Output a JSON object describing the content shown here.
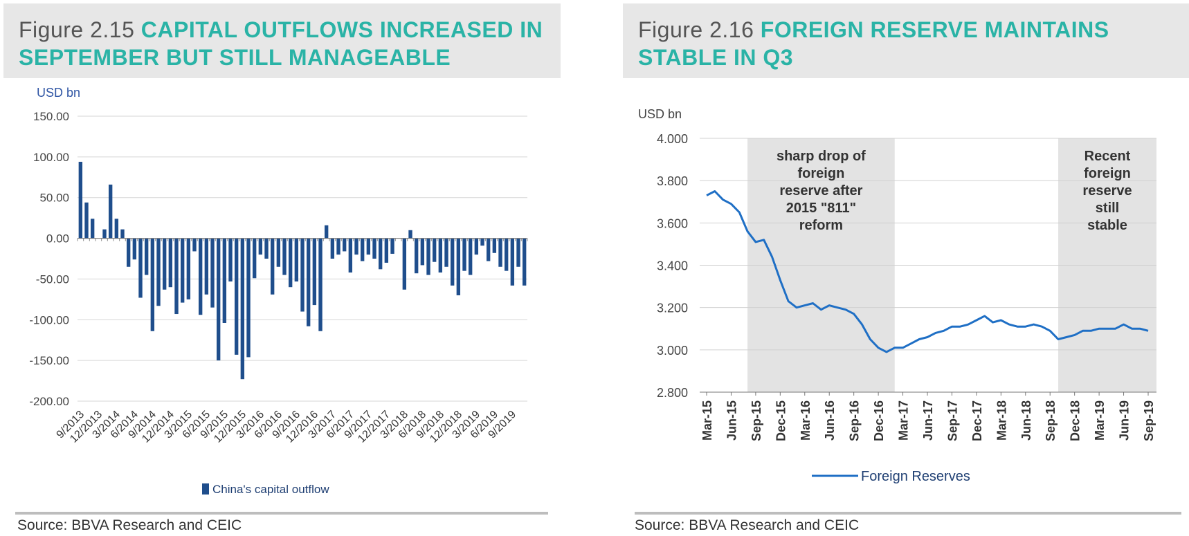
{
  "left_figure": {
    "figure_label": "Figure 2.15",
    "title": "CAPITAL OUTFLOWS INCREASED IN SEPTEMBER BUT STILL MANAGEABLE",
    "source": "Source: BBVA Research and CEIC"
  },
  "right_figure": {
    "figure_label": "Figure 2.16",
    "title": "FOREIGN RESERVE MAINTAINS STABLE IN Q3",
    "source": "Source: BBVA Research and CEIC"
  },
  "chart_data": [
    {
      "type": "bar",
      "unit_label": "USD bn",
      "ylim": [
        -200,
        150
      ],
      "yticks": [
        "150.00",
        "100.00",
        "50.00",
        "0.00",
        "-50.00",
        "-100.00",
        "-150.00",
        "-200.00"
      ],
      "ytick_values": [
        150,
        100,
        50,
        0,
        -50,
        -100,
        -150,
        -200
      ],
      "xtick_labels": [
        "9/2013",
        "12/2013",
        "3/2014",
        "6/2014",
        "9/2014",
        "12/2014",
        "3/2015",
        "6/2015",
        "9/2015",
        "12/2015",
        "3/2016",
        "6/2016",
        "9/2016",
        "12/2016",
        "3/2017",
        "6/2017",
        "9/2017",
        "12/2017",
        "3/2018",
        "6/2018",
        "9/2018",
        "12/2018",
        "3/2019",
        "6/2019",
        "9/2019"
      ],
      "grid": true,
      "legend_position": "bottom",
      "bar_color": "#1f4e8c",
      "series": [
        {
          "name": "China's capital outflow",
          "values": [
            94,
            44,
            24,
            0,
            11,
            66,
            24,
            11,
            -35,
            -26,
            -73,
            -45,
            -114,
            -83,
            -63,
            -60,
            -93,
            -79,
            -75,
            -16,
            -94,
            -69,
            -85,
            -150,
            -104,
            -53,
            -143,
            -173,
            -146,
            -49,
            -20,
            -25,
            -69,
            -35,
            -45,
            -60,
            -53,
            -90,
            -108,
            -82,
            -114,
            16,
            -25,
            -20,
            -16,
            -42,
            -20,
            -28,
            -20,
            -25,
            -38,
            -30,
            -19,
            0,
            -63,
            10,
            -43,
            -33,
            -45,
            -29,
            -42,
            -35,
            -58,
            -70,
            -40,
            -45,
            -20,
            -9,
            -28,
            -18,
            -35,
            -40,
            -58,
            -35,
            -58
          ]
        }
      ]
    },
    {
      "type": "line",
      "unit_label": "USD bn",
      "ylim": [
        2.8,
        4.0
      ],
      "yticks": [
        "4.000",
        "3.800",
        "3.600",
        "3.400",
        "3.200",
        "3.000",
        "2.800"
      ],
      "ytick_values": [
        4.0,
        3.8,
        3.6,
        3.4,
        3.2,
        3.0,
        2.8
      ],
      "x": [
        "Mar-15",
        "Apr-15",
        "May-15",
        "Jun-15",
        "Jul-15",
        "Aug-15",
        "Sep-15",
        "Oct-15",
        "Nov-15",
        "Dec-15",
        "Jan-16",
        "Feb-16",
        "Mar-16",
        "Apr-16",
        "May-16",
        "Jun-16",
        "Jul-16",
        "Aug-16",
        "Sep-16",
        "Oct-16",
        "Nov-16",
        "Dec-16",
        "Jan-17",
        "Feb-17",
        "Mar-17",
        "Apr-17",
        "May-17",
        "Jun-17",
        "Jul-17",
        "Aug-17",
        "Sep-17",
        "Oct-17",
        "Nov-17",
        "Dec-17",
        "Jan-18",
        "Feb-18",
        "Mar-18",
        "Apr-18",
        "May-18",
        "Jun-18",
        "Jul-18",
        "Aug-18",
        "Sep-18",
        "Oct-18",
        "Nov-18",
        "Dec-18",
        "Jan-19",
        "Feb-19",
        "Mar-19",
        "Apr-19",
        "May-19",
        "Jun-19",
        "Jul-19",
        "Aug-19",
        "Sep-19"
      ],
      "xtick_labels": [
        "Mar-15",
        "Jun-15",
        "Sep-15",
        "Dec-15",
        "Mar-16",
        "Jun-16",
        "Sep-16",
        "Dec-16",
        "Mar-17",
        "Jun-17",
        "Sep-17",
        "Dec-17",
        "Mar-18",
        "Jun-18",
        "Sep-18",
        "Dec-18",
        "Mar-19",
        "Jun-19",
        "Sep-19"
      ],
      "grid": true,
      "legend_position": "bottom",
      "line_color": "#1f6fc5",
      "series": [
        {
          "name": "Foreign Reserves",
          "values": [
            3.73,
            3.75,
            3.71,
            3.69,
            3.65,
            3.56,
            3.51,
            3.52,
            3.44,
            3.33,
            3.23,
            3.2,
            3.21,
            3.22,
            3.19,
            3.21,
            3.2,
            3.19,
            3.17,
            3.12,
            3.05,
            3.01,
            2.99,
            3.01,
            3.01,
            3.03,
            3.05,
            3.06,
            3.08,
            3.09,
            3.11,
            3.11,
            3.12,
            3.14,
            3.16,
            3.13,
            3.14,
            3.12,
            3.11,
            3.11,
            3.12,
            3.11,
            3.09,
            3.05,
            3.06,
            3.07,
            3.09,
            3.09,
            3.1,
            3.1,
            3.1,
            3.12,
            3.1,
            3.1,
            3.09
          ]
        }
      ],
      "shaded_regions": [
        {
          "from": "Aug-15",
          "to": "Feb-17",
          "annotation": "sharp drop of foreign reserve after 2015 \"811\" reform"
        },
        {
          "from": "Oct-18",
          "to": "Sep-19",
          "annotation": "Recent foreign reserve still stable"
        }
      ],
      "annotation_lines": [
        [
          "sharp drop of",
          "foreign",
          "reserve after",
          "2015 \"811\"",
          "reform"
        ],
        [
          "Recent",
          "foreign",
          "reserve",
          "still",
          "stable"
        ]
      ]
    }
  ]
}
